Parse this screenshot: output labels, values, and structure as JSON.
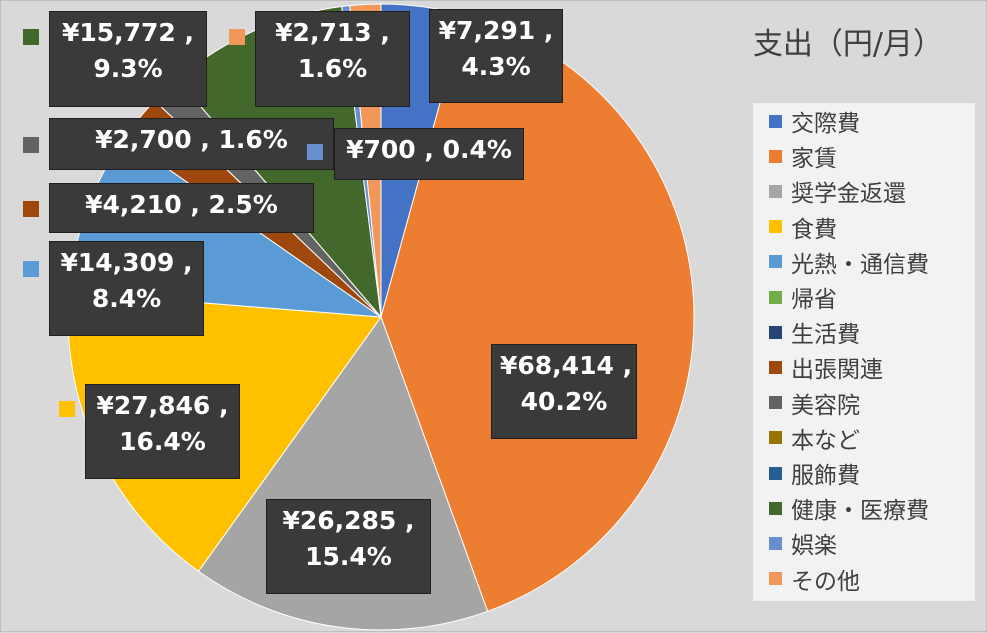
{
  "chart_data": {
    "type": "pie",
    "title": "支出（円/月）",
    "start_angle_deg": 0,
    "direction": "clockwise",
    "legend_position": "right",
    "colors": {
      "background": "#d9d9d9",
      "legend_background": "#f2f2f2",
      "label_background": "#3a3a3a",
      "label_text": "#ffffff"
    },
    "legend": [
      {
        "name": "交際費",
        "color": "#4472c4"
      },
      {
        "name": "家賃",
        "color": "#ed7d31"
      },
      {
        "name": "奨学金返還",
        "color": "#a5a5a5"
      },
      {
        "name": "食費",
        "color": "#ffc000"
      },
      {
        "name": "光熱・通信費",
        "color": "#5b9bd5"
      },
      {
        "name": "帰省",
        "color": "#70ad47"
      },
      {
        "name": "生活費",
        "color": "#264478"
      },
      {
        "name": "出張関連",
        "color": "#9e480e"
      },
      {
        "name": "美容院",
        "color": "#636363"
      },
      {
        "name": "本など",
        "color": "#997300"
      },
      {
        "name": "服飾費",
        "color": "#255e91"
      },
      {
        "name": "健康・医療費",
        "color": "#43682b"
      },
      {
        "name": "娯楽",
        "color": "#698ed0"
      },
      {
        "name": "その他",
        "color": "#f1975a"
      }
    ],
    "slices": [
      {
        "category": "交際費",
        "value": 7291,
        "percent": 4.3,
        "color": "#4472c4",
        "label": [
          "¥7,291 ,",
          "4.3%"
        ]
      },
      {
        "category": "家賃",
        "value": 68414,
        "percent": 40.2,
        "color": "#ed7d31",
        "label": [
          "¥68,414 ,",
          "40.2%"
        ]
      },
      {
        "category": "奨学金返還",
        "value": 26285,
        "percent": 15.4,
        "color": "#a5a5a5",
        "label": [
          "¥26,285 ,",
          "15.4%"
        ]
      },
      {
        "category": "食費",
        "value": 27846,
        "percent": 16.4,
        "color": "#ffc000",
        "label": [
          "¥27,846 ,",
          "16.4%"
        ]
      },
      {
        "category": "光熱・通信費",
        "value": 14309,
        "percent": 8.4,
        "color": "#5b9bd5",
        "label": [
          "¥14,309 ,",
          "8.4%"
        ]
      },
      {
        "category": "帰省",
        "value": 0,
        "percent": 0,
        "color": "#70ad47",
        "label": null
      },
      {
        "category": "生活費",
        "value": 0,
        "percent": 0,
        "color": "#264478",
        "label": null
      },
      {
        "category": "出張関連",
        "value": 4210,
        "percent": 2.5,
        "color": "#9e480e",
        "label": [
          "¥4,210 , 2.5%"
        ]
      },
      {
        "category": "美容院",
        "value": 2700,
        "percent": 1.6,
        "color": "#636363",
        "label": [
          "¥2,700 , 1.6%"
        ]
      },
      {
        "category": "本など",
        "value": 0,
        "percent": 0,
        "color": "#997300",
        "label": null
      },
      {
        "category": "服飾費",
        "value": 0,
        "percent": 0,
        "color": "#255e91",
        "label": null
      },
      {
        "category": "健康・医療費",
        "value": 15772,
        "percent": 9.3,
        "color": "#43682b",
        "label": [
          "¥15,772 ,",
          "9.3%"
        ]
      },
      {
        "category": "娯楽",
        "value": 700,
        "percent": 0.4,
        "color": "#698ed0",
        "label": [
          "¥700 , 0.4%"
        ]
      },
      {
        "category": "その他",
        "value": 2713,
        "percent": 1.6,
        "color": "#f1975a",
        "label": [
          "¥2,713 ,",
          "1.6%"
        ]
      }
    ]
  }
}
